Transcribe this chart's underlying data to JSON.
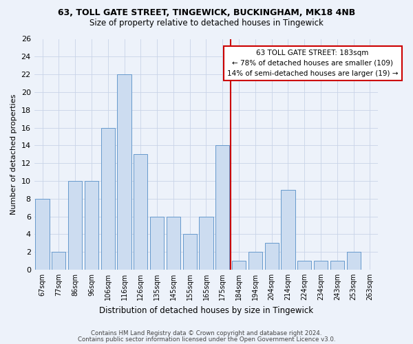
{
  "title": "63, TOLL GATE STREET, TINGEWICK, BUCKINGHAM, MK18 4NB",
  "subtitle": "Size of property relative to detached houses in Tingewick",
  "xlabel": "Distribution of detached houses by size in Tingewick",
  "ylabel": "Number of detached properties",
  "categories": [
    "67sqm",
    "77sqm",
    "86sqm",
    "96sqm",
    "106sqm",
    "116sqm",
    "126sqm",
    "135sqm",
    "145sqm",
    "155sqm",
    "165sqm",
    "175sqm",
    "184sqm",
    "194sqm",
    "204sqm",
    "214sqm",
    "224sqm",
    "234sqm",
    "243sqm",
    "253sqm",
    "263sqm"
  ],
  "values": [
    8,
    2,
    10,
    10,
    16,
    22,
    13,
    6,
    6,
    4,
    6,
    14,
    1,
    2,
    3,
    9,
    1,
    1,
    1,
    2,
    0
  ],
  "bar_color": "#ccdcf0",
  "bar_edge_color": "#6699cc",
  "highlight_idx": 12,
  "annotation_title": "63 TOLL GATE STREET: 183sqm",
  "annotation_line1": "← 78% of detached houses are smaller (109)",
  "annotation_line2": "14% of semi-detached houses are larger (19) →",
  "red_line_color": "#cc0000",
  "annotation_box_color": "#cc0000",
  "ylim": [
    0,
    26
  ],
  "yticks": [
    0,
    2,
    4,
    6,
    8,
    10,
    12,
    14,
    16,
    18,
    20,
    22,
    24,
    26
  ],
  "footer1": "Contains HM Land Registry data © Crown copyright and database right 2024.",
  "footer2": "Contains public sector information licensed under the Open Government Licence v3.0.",
  "bg_color": "#edf2fa",
  "grid_color": "#c8d4e8"
}
